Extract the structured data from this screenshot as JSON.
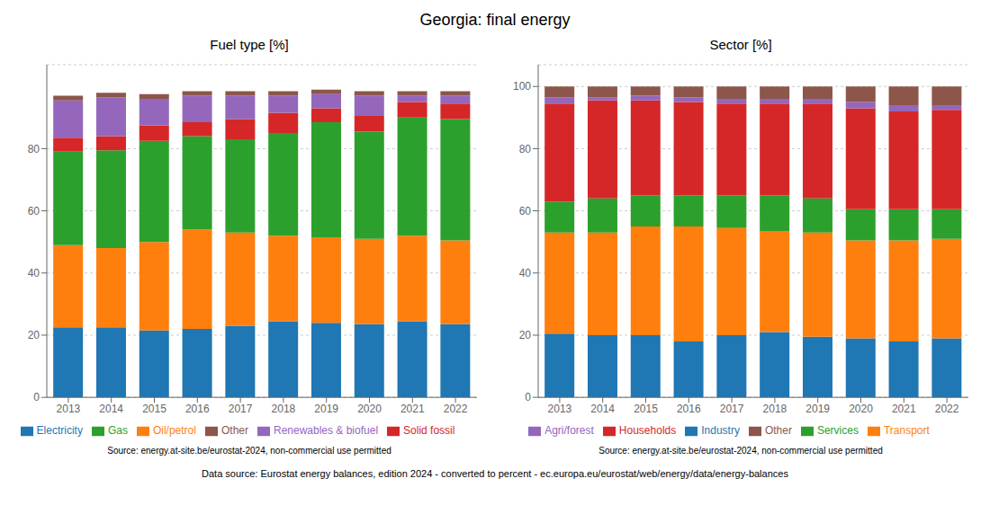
{
  "title": "Georgia: final energy",
  "annotations": [
    "Data source: Eurostat energy balances, edition 2024 - converted to percent - ec.europa.eu/eurostat/web/energy/data/energy-balances"
  ],
  "chart_data": [
    {
      "type": "bar",
      "title": "Fuel type [%]",
      "categories": [
        "2013",
        "2014",
        "2015",
        "2016",
        "2017",
        "2018",
        "2019",
        "2020",
        "2021",
        "2022"
      ],
      "stacked": true,
      "series": [
        {
          "name": "Electricity",
          "color": "#1f77b4",
          "values": [
            22.5,
            22.5,
            21.5,
            22.0,
            23.0,
            24.5,
            24.0,
            23.5,
            24.5,
            23.5
          ]
        },
        {
          "name": "Oil/petrol",
          "color": "#ff7f0e",
          "values": [
            26.5,
            25.5,
            28.5,
            32.0,
            30.0,
            27.5,
            27.5,
            27.5,
            27.5,
            27.0
          ]
        },
        {
          "name": "Gas",
          "color": "#2ca02c",
          "values": [
            30.0,
            31.5,
            32.5,
            30.0,
            30.0,
            33.0,
            37.0,
            34.5,
            38.0,
            39.0
          ]
        },
        {
          "name": "Solid fossil",
          "color": "#d62728",
          "values": [
            4.5,
            4.5,
            5.0,
            4.5,
            6.5,
            6.5,
            4.5,
            5.0,
            5.0,
            5.0
          ]
        },
        {
          "name": "Renewables & biofuel",
          "color": "#9467bd",
          "values": [
            12.0,
            12.5,
            8.5,
            8.5,
            7.5,
            5.5,
            4.5,
            6.5,
            2.0,
            2.5
          ]
        },
        {
          "name": "Other",
          "color": "#8c564b",
          "values": [
            1.5,
            1.5,
            1.5,
            1.5,
            1.5,
            1.5,
            1.5,
            1.5,
            1.5,
            1.5
          ]
        }
      ],
      "ylim": [
        0,
        107
      ],
      "yticks": [
        0,
        20,
        40,
        60,
        80
      ],
      "grid": true,
      "legend": "bottom",
      "annotations": [
        "Source: energy.at-site.be/eurostat-2024, non-commercial use permitted"
      ]
    },
    {
      "type": "bar",
      "title": "Sector [%]",
      "categories": [
        "2013",
        "2014",
        "2015",
        "2016",
        "2017",
        "2018",
        "2019",
        "2020",
        "2021",
        "2022"
      ],
      "stacked": true,
      "series": [
        {
          "name": "Industry",
          "color": "#1f77b4",
          "values": [
            20.5,
            20.0,
            20.0,
            18.0,
            20.0,
            21.0,
            19.5,
            19.0,
            18.0,
            19.0
          ]
        },
        {
          "name": "Transport",
          "color": "#ff7f0e",
          "values": [
            32.5,
            33.0,
            35.0,
            37.0,
            34.5,
            32.5,
            33.5,
            31.5,
            32.5,
            32.0
          ]
        },
        {
          "name": "Services",
          "color": "#2ca02c",
          "values": [
            10.0,
            11.0,
            10.0,
            10.0,
            10.5,
            11.5,
            11.0,
            10.0,
            10.0,
            9.5
          ]
        },
        {
          "name": "Households",
          "color": "#d62728",
          "values": [
            31.5,
            31.5,
            30.5,
            30.0,
            29.5,
            29.5,
            30.5,
            32.5,
            31.5,
            32.0
          ]
        },
        {
          "name": "Agri/forest",
          "color": "#9467bd",
          "values": [
            2.0,
            1.0,
            1.5,
            1.5,
            1.5,
            1.5,
            1.5,
            2.0,
            2.0,
            1.5
          ]
        },
        {
          "name": "Other",
          "color": "#8c564b",
          "values": [
            3.5,
            3.5,
            3.0,
            3.5,
            4.0,
            4.0,
            4.0,
            5.0,
            6.0,
            6.0
          ]
        }
      ],
      "ylim": [
        0,
        107
      ],
      "yticks": [
        0,
        20,
        40,
        60,
        80,
        100
      ],
      "grid": true,
      "legend": "bottom",
      "annotations": [
        "Source: energy.at-site.be/eurostat-2024, non-commercial use permitted"
      ]
    }
  ]
}
